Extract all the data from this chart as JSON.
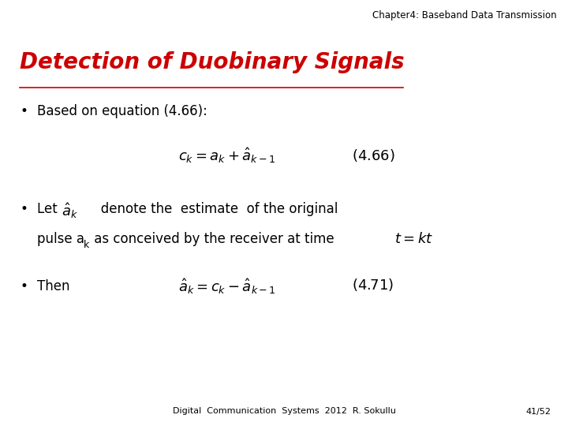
{
  "background_color": "#ffffff",
  "header_text": "Chapter4: Baseband Data Transmission",
  "header_fontsize": 8.5,
  "header_color": "#000000",
  "title_text": "Detection of Duobinary Signals",
  "title_fontsize": 20,
  "title_color": "#cc0000",
  "bullet_fontsize": 12,
  "eq_fontsize": 13,
  "eq_label_fontsize": 13,
  "eq1_latex": "$c_k = a_k + \\hat{a}_{k-1}$",
  "eq1_label": "$(4.66)$",
  "eq2_latex": "$\\hat{a}_k = c_k - \\hat{a}_{k-1}$",
  "eq2_label": "$(4.71)$",
  "footer_left": "Digital  Communication  Systems  2012  R. Sokullu",
  "footer_right": "41/52",
  "footer_fontsize": 8,
  "footer_color": "#000000"
}
